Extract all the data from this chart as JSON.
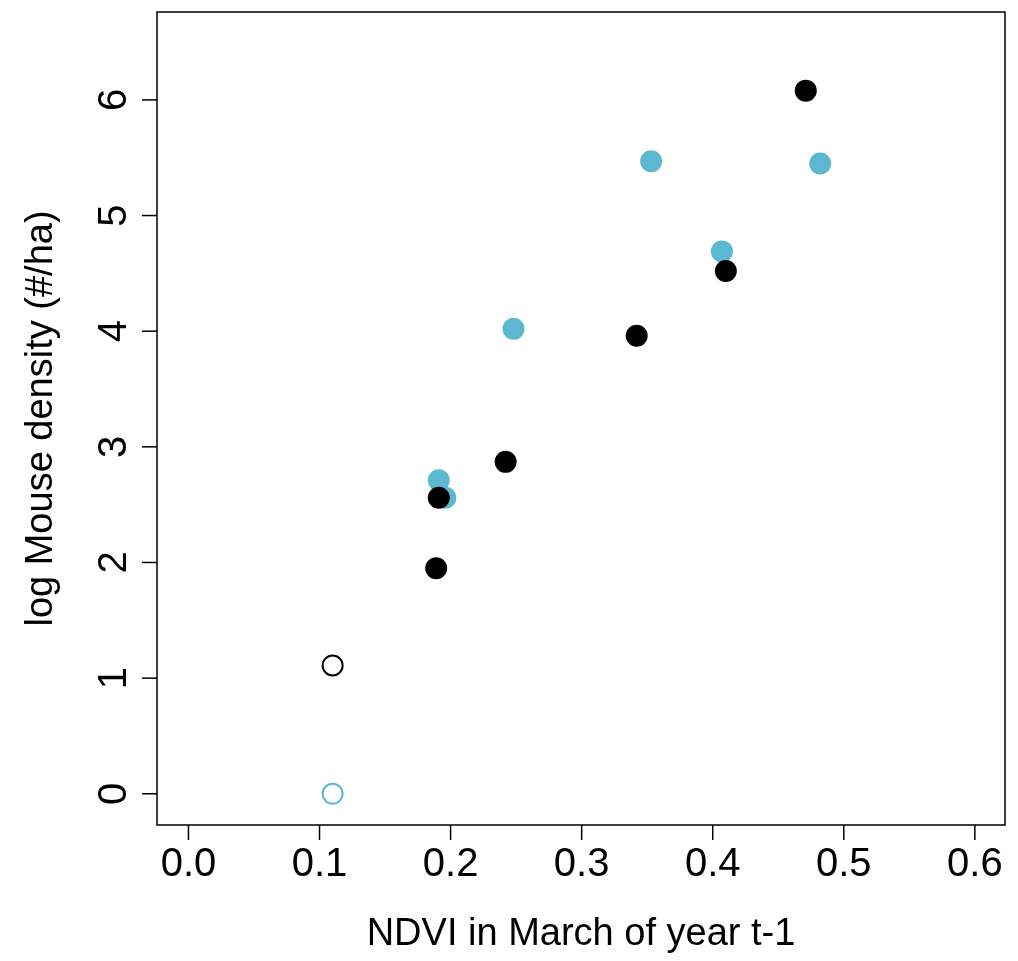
{
  "chart_data": {
    "type": "scatter",
    "xlabel": "NDVI in March of year t-1",
    "ylabel": "log Mouse density (#/ha)",
    "xlim": [
      -0.024,
      0.623
    ],
    "ylim": [
      -0.27,
      6.76
    ],
    "xticks": [
      {
        "value": 0,
        "label": "0.0"
      },
      0.1,
      0.2,
      0.3,
      0.4,
      0.5,
      0.6
    ],
    "yticks": [
      0,
      1,
      2,
      3,
      4,
      5,
      6
    ],
    "grid": false,
    "legend": false,
    "marker": "circle",
    "series": [
      {
        "color": "#000000",
        "x": [
          0.189,
          0.191,
          0.242,
          0.342,
          0.41,
          0.471
        ],
        "values": [
          1.95,
          2.56,
          2.87,
          3.96,
          4.52,
          6.08
        ]
      },
      {
        "color": "#000000",
        "marker": "circle-open",
        "x": [
          0.11
        ],
        "values": [
          1.11
        ]
      },
      {
        "color": "#5bb8d0",
        "x": [
          0.191,
          0.196,
          0.248,
          0.353,
          0.407,
          0.482
        ],
        "values": [
          2.71,
          2.56,
          4.02,
          5.47,
          4.69,
          5.45
        ]
      },
      {
        "color": "#5bb8d0",
        "marker": "circle-open",
        "x": [
          0.11
        ],
        "values": [
          0
        ]
      }
    ]
  }
}
